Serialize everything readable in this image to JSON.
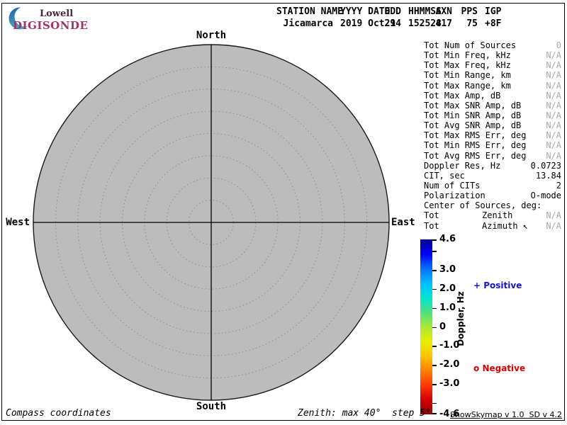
{
  "logo": {
    "name": "Lowell",
    "product": "DIGISONDE",
    "name_color": "#4a2440",
    "product_color": "#a2336e",
    "crescent_colors": [
      "#1f5fa8",
      "#3fb0c4"
    ]
  },
  "header": {
    "columns": [
      {
        "label": "STATION NAME",
        "value": "Jicamarca"
      },
      {
        "label": "YYYY DATE",
        "value": "2019 Oct21"
      },
      {
        "label": "DDD",
        "value": "294"
      },
      {
        "label": "HHMMSS",
        "value": "152528"
      },
      {
        "label": "AXN",
        "value": "417"
      },
      {
        "label": "PPS",
        "value": "75"
      },
      {
        "label": "IGP",
        "value": "+8F"
      }
    ]
  },
  "stats": {
    "na_color": "#a9a9a9",
    "rows": [
      {
        "label": "Tot Num of Sources",
        "mid": "",
        "value": "0",
        "color": "#a9a9a9"
      },
      {
        "label": "Tot Min Freq, kHz",
        "mid": "",
        "value": "N/A",
        "color": "#a9a9a9"
      },
      {
        "label": "Tot Max Freq, kHz",
        "mid": "",
        "value": "N/A",
        "color": "#a9a9a9"
      },
      {
        "label": "Tot Min Range, km",
        "mid": "",
        "value": "N/A",
        "color": "#a9a9a9"
      },
      {
        "label": "Tot Max Range, km",
        "mid": "",
        "value": "N/A",
        "color": "#a9a9a9"
      },
      {
        "label": "Tot Max Amp, dB",
        "mid": "",
        "value": "N/A",
        "color": "#a9a9a9"
      },
      {
        "label": "Tot Max SNR Amp, dB",
        "mid": "",
        "value": "N/A",
        "color": "#a9a9a9"
      },
      {
        "label": "Tot Min SNR Amp, dB",
        "mid": "",
        "value": "N/A",
        "color": "#a9a9a9"
      },
      {
        "label": "Tot Avg SNR Amp, dB",
        "mid": "",
        "value": "N/A",
        "color": "#a9a9a9"
      },
      {
        "label": "Tot Max RMS Err, deg",
        "mid": "",
        "value": "N/A",
        "color": "#a9a9a9"
      },
      {
        "label": "Tot Min RMS Err, deg",
        "mid": "",
        "value": "N/A",
        "color": "#a9a9a9"
      },
      {
        "label": "Tot Avg RMS Err, deg",
        "mid": "",
        "value": "N/A",
        "color": "#a9a9a9"
      },
      {
        "label": "Doppler Res, Hz",
        "mid": "",
        "value": "0.0723"
      },
      {
        "label": "CIT, sec",
        "mid": "",
        "value": "13.84"
      },
      {
        "label": "Num of CITs",
        "mid": "",
        "value": "2"
      },
      {
        "label": "Polarization",
        "mid": "",
        "value": "O-mode"
      },
      {
        "label": "Center of Sources, deg:",
        "mid": "",
        "value": ""
      },
      {
        "label": "Tot",
        "mid": "Zenith",
        "value": "N/A",
        "color": "#a9a9a9"
      },
      {
        "label": "Tot",
        "mid": "Azimuth ↖",
        "value": "N/A",
        "color": "#a9a9a9"
      }
    ]
  },
  "plot": {
    "north": "North",
    "south": "South",
    "east": "East",
    "west": "West",
    "circle_fill": "#bcbcbc",
    "grid_color": "#8a8a8a",
    "axis_color": "#000000"
  },
  "legend": {
    "positive_marker": "+",
    "positive_label": "Positive",
    "positive_color": "#1414dd",
    "negative_marker": "o",
    "negative_label": "Negative",
    "negative_color": "#dd0000"
  },
  "colorbar": {
    "title": "Doppler, Hz",
    "max": 4.6,
    "min": -4.6,
    "gradient": [
      "#000090",
      "#0000ff",
      "#0070ff",
      "#00bfff",
      "#00e5d5",
      "#4fe07a",
      "#a8e834",
      "#e8ee00",
      "#ffc400",
      "#ff8000",
      "#ff3800",
      "#d40000",
      "#900000"
    ],
    "ticks": [
      {
        "value": 4.6,
        "label": "4.6"
      },
      {
        "value": 4.0,
        "label": ""
      },
      {
        "value": 3.0,
        "label": "3.0"
      },
      {
        "value": 2.0,
        "label": "2.0"
      },
      {
        "value": 1.0,
        "label": "1.0"
      },
      {
        "value": 0.0,
        "label": "0"
      },
      {
        "value": -1.0,
        "label": "-1.0"
      },
      {
        "value": -2.0,
        "label": "-2.0"
      },
      {
        "value": -3.0,
        "label": "-3.0"
      },
      {
        "value": -4.0,
        "label": ""
      },
      {
        "value": -4.6,
        "label": "-4.6"
      }
    ]
  },
  "footer": {
    "coords": "Compass coordinates",
    "zenith": "Zenith: max 40°  step 5°",
    "version": "ShowSkymap v 1.0  SD v 4.2"
  },
  "chart_data": {
    "type": "scatter",
    "projection": "polar-skymap",
    "title": "Digisonde skymap — Jicamarca, 2019 Oct21 (DOY 294) 15:25:28",
    "station": "Jicamarca",
    "date": "2019 Oct21",
    "doy": 294,
    "time_hhmmss": "152528",
    "axn": 417,
    "pps": 75,
    "igp": "+8F",
    "coordinate_system": "Compass coordinates",
    "zenith_max_deg": 40,
    "zenith_step_deg": 5,
    "rings_deg": [
      5,
      10,
      15,
      20,
      25,
      30,
      35,
      40
    ],
    "compass_labels": [
      "North",
      "East",
      "South",
      "West"
    ],
    "points": [],
    "num_sources": 0,
    "doppler_res_hz": 0.0723,
    "cit_sec": 13.84,
    "num_of_cits": 2,
    "polarization": "O-mode",
    "colorbar": {
      "label": "Doppler, Hz",
      "min": -4.6,
      "max": 4.6,
      "tick_labels": [
        "4.6",
        "3.0",
        "2.0",
        "1.0",
        "0",
        "-1.0",
        "-2.0",
        "-3.0",
        "-4.6"
      ],
      "colormap": "jet reversed (blue = positive Doppler, red = negative)",
      "positive_marker": "+",
      "negative_marker": "o"
    },
    "legend_position": "right",
    "grid": "dotted zenith rings every 5 deg, N-S / E-W crosshair"
  }
}
